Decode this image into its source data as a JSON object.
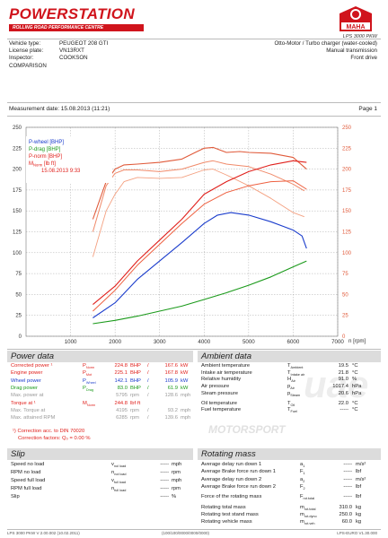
{
  "header": {
    "brand": "POWERSTATION",
    "brand_sub": "ROLLING ROAD PERFORMANCE CENTRE",
    "maha_badge": "MAHA",
    "lps_caption": "LPS 3000 PKW"
  },
  "vehicle": {
    "type_label": "Vehicle type:",
    "type_value": "PEUGEOT 208 GTI",
    "plate_label": "License plate:",
    "plate_value": "VN13RXT",
    "inspector_label": "Inspector:",
    "inspector_value": "COOKSON",
    "engine": "Otto-Motor / Turbo charger (water-cooled)",
    "transmission": "Manual transmission",
    "drive": "Front drive",
    "comparison": "COMPARISON"
  },
  "measurement": {
    "date_text": "Measurement date: 15.08.2013 (11:21)",
    "page": "Page 1"
  },
  "chart_data": {
    "type": "line",
    "xlabel": "n [rpm]",
    "xlim": [
      0,
      7000
    ],
    "x_ticks": [
      "1000",
      "2000",
      "3000",
      "4000",
      "5000",
      "6000",
      "7000"
    ],
    "y_left_lim": [
      0,
      250
    ],
    "y_left_ticks": [
      "0",
      "25",
      "50",
      "75",
      "100",
      "125",
      "150",
      "175",
      "200",
      "225",
      "250"
    ],
    "y_right_lim": [
      0,
      250
    ],
    "y_right_ticks": [
      "0",
      "25",
      "50",
      "75",
      "100",
      "125",
      "150",
      "175",
      "200",
      "225",
      "250"
    ],
    "legend": [
      "P-wheel [BHP]",
      "P-drag [BHP]",
      "P-norm [BHP]",
      "M",
      "Norm",
      " [lb ft]",
      "15.08.2013 9:33"
    ],
    "legend_colors": [
      "#1a3ccc",
      "#1a9a1a",
      "#e0201c",
      "#e0201c",
      "#e0201c",
      "#e0201c",
      "#e0201c"
    ],
    "grid": true,
    "series": [
      {
        "color": "#e05a3a",
        "width": 1.1,
        "x": [
          1500,
          1800,
          2000,
          2200,
          2500,
          3000,
          3500,
          3800,
          4000,
          4200,
          4500,
          4800,
          5000,
          5500,
          6000,
          6300
        ],
        "y": [
          140,
          185,
          200,
          205,
          206,
          208,
          212,
          220,
          225,
          226,
          220,
          221,
          220,
          219,
          214,
          200
        ]
      },
      {
        "color": "#f08a6a",
        "width": 1.0,
        "x": [
          1500,
          1800,
          2000,
          2200,
          2500,
          3000,
          3500,
          4000,
          4200,
          4500,
          5000,
          5500,
          6000,
          6250
        ],
        "y": [
          125,
          180,
          195,
          199,
          199,
          197,
          200,
          208,
          210,
          206,
          203,
          194,
          182,
          174
        ]
      },
      {
        "color": "#f4a080",
        "width": 0.9,
        "x": [
          1500,
          1800,
          2000,
          2200,
          2500,
          3000,
          3500,
          4000,
          4200,
          4500,
          5000,
          5500,
          6000,
          6250
        ],
        "y": [
          95,
          150,
          170,
          185,
          190,
          189,
          190,
          199,
          200,
          193,
          180,
          165,
          148,
          143
        ]
      },
      {
        "color": "#e0201c",
        "width": 1.1,
        "x": [
          1500,
          2000,
          2500,
          3000,
          3500,
          4000,
          4500,
          5000,
          5500,
          6000,
          6300
        ],
        "y": [
          38,
          60,
          90,
          115,
          140,
          170,
          185,
          197,
          205,
          210,
          208
        ]
      },
      {
        "color": "#ee6040",
        "width": 1.0,
        "x": [
          1500,
          2000,
          2500,
          3000,
          3500,
          4000,
          4500,
          5000,
          5500,
          6000,
          6300
        ],
        "y": [
          30,
          55,
          85,
          110,
          135,
          158,
          172,
          180,
          185,
          186,
          176
        ]
      },
      {
        "color": "#1a3ccc",
        "width": 1.1,
        "x": [
          1500,
          2000,
          2500,
          3000,
          3500,
          4000,
          4300,
          4600,
          5000,
          5500,
          5800,
          6000,
          6200,
          6300
        ],
        "y": [
          22,
          40,
          68,
          90,
          112,
          135,
          145,
          148,
          145,
          137,
          131,
          127,
          120,
          105
        ]
      },
      {
        "color": "#1a9a1a",
        "width": 1.1,
        "x": [
          1500,
          2000,
          2500,
          3000,
          3500,
          4000,
          4500,
          5000,
          5500,
          6000,
          6300
        ],
        "y": [
          15,
          19,
          24,
          30,
          36,
          44,
          52,
          61,
          71,
          83,
          90
        ]
      }
    ]
  },
  "power": {
    "title": "Power data",
    "rows": [
      {
        "label": "Corrected power",
        "mark": "¹",
        "sym": "P",
        "sub": "Norm",
        "v1": "224.8",
        "u1": "BHP",
        "v2": "167.6",
        "u2": "kW",
        "color": "red"
      },
      {
        "label": "Engine power",
        "mark": "",
        "sym": "P",
        "sub": "Mot",
        "v1": "225.1",
        "u1": "BHP",
        "v2": "167.8",
        "u2": "kW",
        "color": "red"
      },
      {
        "label": "Wheel power",
        "mark": "",
        "sym": "P",
        "sub": "Wheel",
        "v1": "142.1",
        "u1": "BHP",
        "v2": "105.9",
        "u2": "kW",
        "color": "blue"
      },
      {
        "label": "Drag power",
        "mark": "",
        "sym": "P",
        "sub": "Drag",
        "v1": "83.0",
        "u1": "BHP",
        "v2": "61.9",
        "u2": "kW",
        "color": "green"
      },
      {
        "label": "Max. power at",
        "mark": "",
        "sym": "",
        "sub": "",
        "v1": "5795",
        "u1": "rpm",
        "v2": "128.6",
        "u2": "mph",
        "color": "grey"
      },
      {
        "label": "Torque at",
        "mark": "¹",
        "sym": "M",
        "sub": "Norm",
        "v1": "244.8",
        "u1": "lbf·ft",
        "v2": "",
        "u2": "",
        "color": "red"
      },
      {
        "label": "Max. Torque at",
        "mark": "",
        "sym": "",
        "sub": "",
        "v1": "4195",
        "u1": "rpm",
        "v2": "93.2",
        "u2": "mph",
        "color": "grey"
      },
      {
        "label": "Max. attained RPM",
        "mark": "",
        "sym": "",
        "sub": "",
        "v1": "6285",
        "u1": "rpm",
        "v2": "139.6",
        "u2": "mph",
        "color": "grey"
      }
    ],
    "note1": "¹) Correction acc. to DIN 70020",
    "note2": "Correction factors: Q₀ =   0.00 %"
  },
  "ambient": {
    "title": "Ambient data",
    "rows": [
      {
        "label": "Ambient temperature",
        "sym": "T",
        "sub": "Ambient",
        "val": "19.5",
        "unit": "°C"
      },
      {
        "label": "Intake air temperature",
        "sym": "T",
        "sub": "Intake air",
        "val": "21.8",
        "unit": "°C"
      },
      {
        "label": "Relative humidity",
        "sym": "H",
        "sub": "Air",
        "val": "91.0",
        "unit": "%"
      },
      {
        "label": "Air pressure",
        "sym": "p",
        "sub": "Air",
        "val": "1017.4",
        "unit": "hPa"
      },
      {
        "label": "Steam pressure",
        "sym": "p",
        "sub": "Steam",
        "val": "20.6",
        "unit": "hPa"
      },
      {
        "label": "Oil temperature",
        "sym": "T",
        "sub": "Oil",
        "val": "22.0",
        "unit": "°C"
      },
      {
        "label": "Fuel temperature",
        "sym": "T",
        "sub": "Fuel",
        "val": "-----",
        "unit": "°C"
      }
    ]
  },
  "watermark": {
    "big": "uae",
    "small": "MOTORSPORT"
  },
  "slip": {
    "title": "Slip",
    "rows": [
      {
        "label": "Speed no load",
        "sym": "v",
        "sub": "nol load",
        "val": "-----",
        "unit": "mph"
      },
      {
        "label": "RPM no load",
        "sym": "n",
        "sub": "nol load",
        "val": "-----",
        "unit": "rpm"
      },
      {
        "label": "Speed full load",
        "sym": "v",
        "sub": "full load",
        "val": "-----",
        "unit": "mph"
      },
      {
        "label": "RPM full load",
        "sym": "n",
        "sub": "full load",
        "val": "-----",
        "unit": "rpm"
      },
      {
        "label": "Slip",
        "sym": "",
        "sub": "",
        "val": "-----",
        "unit": "%"
      }
    ]
  },
  "rotating": {
    "title": "Rotating mass",
    "rows": [
      {
        "label": "Average delay run down 1",
        "sym": "a",
        "sub": "1",
        "val": "-----",
        "unit": "m/s²"
      },
      {
        "label": "Average Brake force run down 1",
        "sym": "F",
        "sub": "1",
        "val": "-----",
        "unit": "lbf"
      },
      {
        "label": "Average delay run down 2",
        "sym": "a",
        "sub": "2",
        "val": "-----",
        "unit": "m/s²"
      },
      {
        "label": "Average Brake force run down 2",
        "sym": "F",
        "sub": "2",
        "val": "-----",
        "unit": "lbf"
      },
      {
        "label": "Force of the rotating mass",
        "sym": "F",
        "sub": "rot.total",
        "val": "-----",
        "unit": "lbf"
      },
      {
        "label": "Rotating total mass",
        "sym": "m",
        "sub": "rot.total",
        "val": "310.0",
        "unit": "kg"
      },
      {
        "label": "Rotating test stand mass",
        "sym": "m",
        "sub": "rot.dyno",
        "val": "250.0",
        "unit": "kg"
      },
      {
        "label": "Rotating vehicle mass",
        "sym": "m",
        "sub": "rot.veh",
        "val": "60.0",
        "unit": "kg"
      }
    ]
  },
  "footer": {
    "left": "LPS 3000 PKW V 2.00.002 (10.02.2011)",
    "mid": "(100/100/0000/0000/0000)",
    "right": "LPS-EURO V1.30.000"
  }
}
